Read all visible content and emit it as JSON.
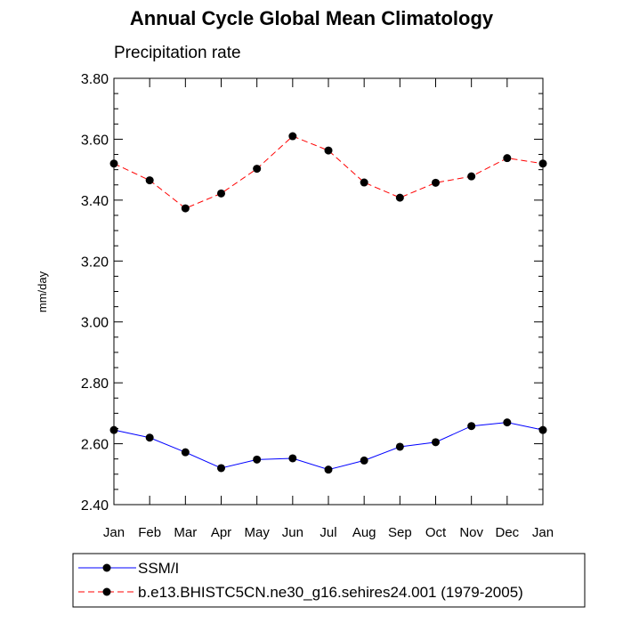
{
  "chart_data": {
    "type": "line",
    "title": "Annual Cycle Global Mean Climatology",
    "subtitle": "Precipitation rate",
    "ylabel": "mm/day",
    "xlabel": "",
    "categories": [
      "Jan",
      "Feb",
      "Mar",
      "Apr",
      "May",
      "Jun",
      "Jul",
      "Aug",
      "Sep",
      "Oct",
      "Nov",
      "Dec",
      "Jan"
    ],
    "ylim": [
      2.4,
      3.8
    ],
    "yticks": [
      "2.40",
      "2.60",
      "2.80",
      "3.00",
      "3.20",
      "3.40",
      "3.60",
      "3.80"
    ],
    "grid": false,
    "legend_position": "bottom",
    "series": [
      {
        "name": "SSM/I",
        "color": "#0000ff",
        "dash": "solid",
        "marker": "circle",
        "values": [
          2.645,
          2.62,
          2.572,
          2.52,
          2.548,
          2.552,
          2.515,
          2.545,
          2.59,
          2.605,
          2.658,
          2.67,
          2.645
        ]
      },
      {
        "name": "b.e13.BHISTC5CN.ne30_g16.sehires24.001 (1979-2005)",
        "color": "#ff0000",
        "dash": "dashed",
        "marker": "circle",
        "values": [
          3.52,
          3.465,
          3.373,
          3.422,
          3.503,
          3.61,
          3.563,
          3.458,
          3.408,
          3.457,
          3.478,
          3.538,
          3.52
        ]
      }
    ]
  }
}
